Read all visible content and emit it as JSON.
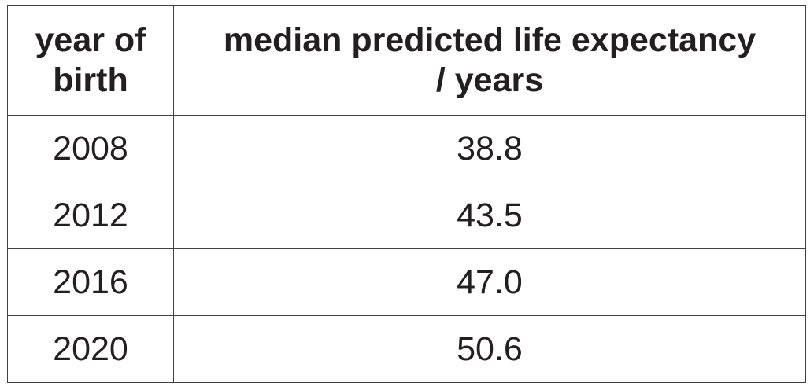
{
  "table": {
    "headers": {
      "year": {
        "line1": "year of",
        "line2": "birth"
      },
      "life": {
        "line1": "median predicted life expectancy",
        "line2": "/ years"
      }
    },
    "rows": [
      {
        "year": "2008",
        "value": "38.8"
      },
      {
        "year": "2012",
        "value": "43.5"
      },
      {
        "year": "2016",
        "value": "47.0"
      },
      {
        "year": "2020",
        "value": "50.6"
      }
    ]
  },
  "chart_data": {
    "type": "table",
    "columns": [
      "year of birth",
      "median predicted life expectancy / years"
    ],
    "x": [
      2008,
      2012,
      2016,
      2020
    ],
    "values": [
      38.8,
      43.5,
      47.0,
      50.6
    ]
  }
}
